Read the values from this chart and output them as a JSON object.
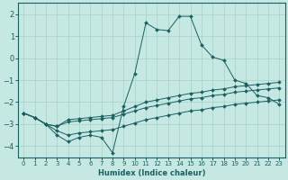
{
  "xlabel": "Humidex (Indice chaleur)",
  "ylabel": "",
  "xlim": [
    -0.5,
    23.5
  ],
  "ylim": [
    -4.5,
    2.5
  ],
  "yticks": [
    -4,
    -3,
    -2,
    -1,
    0,
    1,
    2
  ],
  "xticks": [
    0,
    1,
    2,
    3,
    4,
    5,
    6,
    7,
    8,
    9,
    10,
    11,
    12,
    13,
    14,
    15,
    16,
    17,
    18,
    19,
    20,
    21,
    22,
    23
  ],
  "background_color": "#c5e8e3",
  "grid_color": "#a8cfc8",
  "line_color": "#1a6060",
  "series": [
    {
      "x": [
        0,
        1,
        2,
        3,
        4,
        5,
        6,
        7,
        8,
        9,
        10,
        11,
        12,
        13,
        14,
        15,
        16,
        17,
        18,
        19,
        20,
        21,
        22,
        23
      ],
      "y": [
        -2.5,
        -2.7,
        -3.0,
        -3.5,
        -3.8,
        -3.6,
        -3.5,
        -3.6,
        -4.3,
        -2.2,
        -0.7,
        1.6,
        1.3,
        1.25,
        1.9,
        1.9,
        0.6,
        0.05,
        -0.1,
        -1.0,
        -1.15,
        -1.7,
        -1.8,
        -2.1
      ]
    },
    {
      "x": [
        0,
        1,
        2,
        3,
        4,
        5,
        6,
        7,
        8,
        9,
        10,
        11,
        12,
        13,
        14,
        15,
        16,
        17,
        18,
        19,
        20,
        21,
        22,
        23
      ],
      "y": [
        -2.5,
        -2.7,
        -3.0,
        -3.1,
        -2.8,
        -2.75,
        -2.7,
        -2.65,
        -2.6,
        -2.4,
        -2.2,
        -2.0,
        -1.9,
        -1.8,
        -1.7,
        -1.6,
        -1.55,
        -1.45,
        -1.4,
        -1.3,
        -1.25,
        -1.2,
        -1.15,
        -1.1
      ]
    },
    {
      "x": [
        0,
        1,
        2,
        3,
        4,
        5,
        6,
        7,
        8,
        9,
        10,
        11,
        12,
        13,
        14,
        15,
        16,
        17,
        18,
        19,
        20,
        21,
        22,
        23
      ],
      "y": [
        -2.5,
        -2.7,
        -3.0,
        -3.1,
        -2.9,
        -2.85,
        -2.8,
        -2.75,
        -2.7,
        -2.55,
        -2.4,
        -2.25,
        -2.15,
        -2.05,
        -1.95,
        -1.85,
        -1.8,
        -1.7,
        -1.65,
        -1.55,
        -1.5,
        -1.45,
        -1.4,
        -1.35
      ]
    },
    {
      "x": [
        0,
        1,
        2,
        3,
        4,
        5,
        6,
        7,
        8,
        9,
        10,
        11,
        12,
        13,
        14,
        15,
        16,
        17,
        18,
        19,
        20,
        21,
        22,
        23
      ],
      "y": [
        -2.5,
        -2.7,
        -3.0,
        -3.3,
        -3.5,
        -3.4,
        -3.35,
        -3.3,
        -3.25,
        -3.1,
        -2.95,
        -2.8,
        -2.7,
        -2.6,
        -2.5,
        -2.4,
        -2.35,
        -2.25,
        -2.2,
        -2.1,
        -2.05,
        -2.0,
        -1.95,
        -1.9
      ]
    }
  ]
}
